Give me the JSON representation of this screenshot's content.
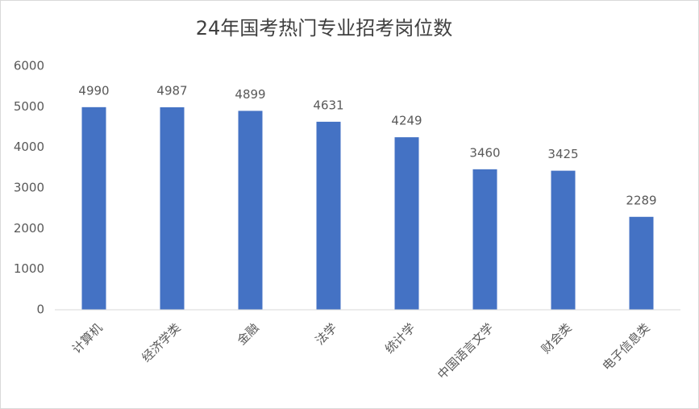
{
  "chart_data": {
    "type": "bar",
    "title": "24年国考热门专业招考岗位数",
    "categories": [
      "计算机",
      "经济学类",
      "金融",
      "法学",
      "统计学",
      "中国语言文学",
      "财会类",
      "电子信息类"
    ],
    "values": [
      4990,
      4987,
      4899,
      4631,
      4249,
      3460,
      3425,
      2289
    ],
    "color": "#4472c4",
    "ylim": [
      0,
      6000
    ],
    "yticks": [
      0,
      1000,
      2000,
      3000,
      4000,
      5000,
      6000
    ],
    "grid": false
  }
}
